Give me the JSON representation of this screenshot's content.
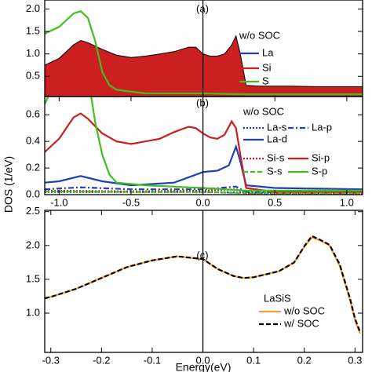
{
  "chart_data": [
    {
      "type": "line",
      "panel_label": "(a)",
      "legend_title": "w/o SOC",
      "xlim": [
        -1.1,
        1.11
      ],
      "ylim": [
        0.05,
        2.2
      ],
      "vline": 0,
      "yticks": [
        0.5,
        {
          "value": 1,
          "label": "1.0"
        },
        1.5,
        {
          "value": 2,
          "label": "2.0"
        }
      ],
      "series": [
        {
          "name": "La",
          "color": "#1f3fbf",
          "dash": "solid",
          "x": [
            -1.1,
            -0.8,
            -0.6,
            -0.3,
            0,
            0.1,
            0.2,
            0.24,
            0.27,
            0.3,
            0.5,
            1.11
          ],
          "values": [
            0.3,
            0.4,
            0.32,
            0.35,
            0.45,
            0.5,
            0.7,
            0.85,
            0.4,
            0.12,
            0.1,
            0.1
          ]
        },
        {
          "name": "Si",
          "color": "#cc1f1f",
          "dash": "solid",
          "area": true,
          "x": [
            -1.1,
            -1.0,
            -0.9,
            -0.85,
            -0.8,
            -0.7,
            -0.6,
            -0.5,
            -0.4,
            -0.3,
            -0.2,
            -0.1,
            -0.05,
            0,
            0.05,
            0.1,
            0.15,
            0.2,
            0.23,
            0.26,
            0.3,
            0.4,
            0.6,
            0.8,
            1.0,
            1.11
          ],
          "values": [
            0.75,
            0.9,
            1.2,
            1.3,
            1.25,
            1.1,
            0.97,
            0.92,
            0.95,
            1.0,
            1.05,
            1.15,
            1.15,
            1.0,
            0.95,
            0.95,
            1.0,
            1.2,
            1.4,
            1.0,
            0.3,
            0.28,
            0.28,
            0.27,
            0.27,
            0.27
          ]
        },
        {
          "name": "S",
          "color": "#3fc01f",
          "dash": "solid",
          "x": [
            -1.1,
            -1.0,
            -0.9,
            -0.85,
            -0.8,
            -0.75,
            -0.7,
            -0.65,
            -0.6,
            -0.4,
            0,
            0.3,
            1.11
          ],
          "values": [
            1.45,
            1.6,
            1.9,
            1.95,
            1.8,
            1.3,
            0.6,
            0.3,
            0.2,
            0.12,
            0.12,
            0.1,
            0.1
          ]
        }
      ]
    },
    {
      "type": "line",
      "panel_label": "(b)",
      "legend_title": "w/o SOC",
      "ylabel": "DOS (1/eV)",
      "xlim": [
        -1.1,
        1.11
      ],
      "ylim": [
        0,
        0.737
      ],
      "vline": 0,
      "xticks": [
        {
          "value": -1,
          "label": "-1.0"
        },
        -0.5,
        {
          "value": 0,
          "label": "0.0"
        },
        0.5,
        {
          "value": 1,
          "label": "1.0"
        }
      ],
      "yticks": [
        {
          "value": 0,
          "label": "0.0"
        },
        0.2,
        0.4,
        0.6
      ],
      "series": [
        {
          "name": "La-s",
          "color": "#1f3fbf",
          "dash": "dot",
          "x": [
            -1.1,
            0,
            0.3,
            1.11
          ],
          "values": [
            0.02,
            0.02,
            0.015,
            0.01
          ]
        },
        {
          "name": "La-p",
          "color": "#1f3fbf",
          "dash": "dashdot",
          "x": [
            -1.1,
            -0.85,
            -0.5,
            0,
            0.23,
            0.3,
            1.11
          ],
          "values": [
            0.04,
            0.055,
            0.04,
            0.04,
            0.06,
            0.02,
            0.015
          ]
        },
        {
          "name": "La-d",
          "color": "#1f3fbf",
          "dash": "solid",
          "x": [
            -1.1,
            -1.0,
            -0.85,
            -0.7,
            -0.5,
            -0.2,
            0,
            0.1,
            0.18,
            0.23,
            0.26,
            0.3,
            0.5,
            1.11
          ],
          "values": [
            0.09,
            0.1,
            0.14,
            0.1,
            0.07,
            0.09,
            0.17,
            0.18,
            0.22,
            0.36,
            0.25,
            0.07,
            0.05,
            0.04
          ]
        },
        {
          "name": "Si-s",
          "color": "#cc1f1f",
          "dash": "dot",
          "x": [
            -1.1,
            -0.5,
            0,
            0.23,
            0.3,
            1.11
          ],
          "values": [
            0.03,
            0.025,
            0.03,
            0.04,
            0.01,
            0.01
          ]
        },
        {
          "name": "Si-p",
          "color": "#cc1f1f",
          "dash": "solid",
          "x": [
            -1.1,
            -1.0,
            -0.9,
            -0.85,
            -0.8,
            -0.7,
            -0.6,
            -0.5,
            -0.4,
            -0.3,
            -0.2,
            -0.1,
            -0.05,
            0,
            0.05,
            0.1,
            0.15,
            0.2,
            0.23,
            0.26,
            0.3,
            0.5,
            1.11
          ],
          "values": [
            0.32,
            0.42,
            0.58,
            0.61,
            0.57,
            0.46,
            0.4,
            0.38,
            0.4,
            0.42,
            0.47,
            0.51,
            0.5,
            0.46,
            0.43,
            0.42,
            0.45,
            0.55,
            0.5,
            0.3,
            0.05,
            0.02,
            0.02
          ]
        },
        {
          "name": "S-s",
          "color": "#3fc01f",
          "dash": "dash",
          "x": [
            -1.1,
            -0.5,
            0,
            0.3,
            1.11
          ],
          "values": [
            0.025,
            0.02,
            0.02,
            0.01,
            0.01
          ]
        },
        {
          "name": "S-p",
          "color": "#3fc01f",
          "dash": "solid",
          "x": [
            -1.1,
            -1.05,
            -0.8,
            -0.75,
            -0.7,
            -0.65,
            -0.6,
            -0.4,
            -0.2,
            0,
            0.3,
            1.11
          ],
          "values": [
            0.68,
            0.8,
            0.9,
            0.55,
            0.3,
            0.15,
            0.09,
            0.07,
            0.06,
            0.05,
            0.03,
            0.03
          ]
        }
      ]
    },
    {
      "type": "line",
      "panel_label": "(c)",
      "legend_title": "LaSiS",
      "xlabel": "Energy(eV)",
      "xlim": [
        -0.312,
        0.315
      ],
      "ylim": [
        0.42,
        2.52
      ],
      "vline": 0,
      "xticks": [
        -0.3,
        -0.2,
        -0.1,
        {
          "value": 0,
          "label": "0.0"
        },
        0.1,
        0.2,
        0.3
      ],
      "yticks": [
        {
          "value": 1,
          "label": "1.0"
        },
        1.5,
        {
          "value": 2,
          "label": "2.0"
        },
        2.5
      ],
      "series": [
        {
          "name": "w/o SOC",
          "color": "#f0a030",
          "dash": "solid",
          "x": [
            -0.312,
            -0.3,
            -0.25,
            -0.2,
            -0.15,
            -0.1,
            -0.05,
            0,
            0.03,
            0.06,
            0.08,
            0.1,
            0.15,
            0.18,
            0.2,
            0.215,
            0.23,
            0.25,
            0.27,
            0.29,
            0.3,
            0.31
          ],
          "values": [
            1.22,
            1.24,
            1.36,
            1.52,
            1.68,
            1.78,
            1.84,
            1.8,
            1.65,
            1.55,
            1.52,
            1.53,
            1.62,
            1.75,
            1.98,
            2.12,
            2.08,
            2.0,
            1.7,
            1.2,
            0.9,
            0.7
          ]
        },
        {
          "name": "w/ SOC",
          "color": "#000000",
          "dash": "dash",
          "x": [
            -0.312,
            -0.3,
            -0.25,
            -0.2,
            -0.15,
            -0.1,
            -0.05,
            0,
            0.03,
            0.06,
            0.08,
            0.1,
            0.15,
            0.18,
            0.2,
            0.215,
            0.23,
            0.25,
            0.27,
            0.29,
            0.3,
            0.31
          ],
          "values": [
            1.22,
            1.24,
            1.36,
            1.52,
            1.68,
            1.78,
            1.84,
            1.8,
            1.65,
            1.55,
            1.52,
            1.53,
            1.62,
            1.75,
            1.99,
            2.14,
            2.09,
            2.01,
            1.72,
            1.22,
            0.92,
            0.72
          ]
        }
      ]
    }
  ]
}
